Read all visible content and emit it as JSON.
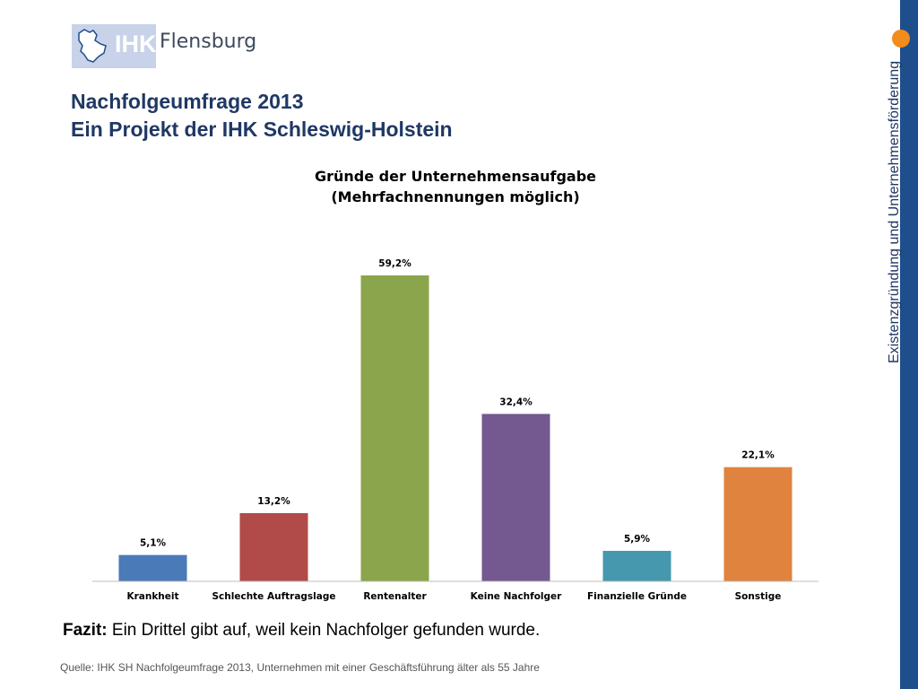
{
  "header": {
    "logo_text": "IHK",
    "logo_city": "Flensburg",
    "title": "Nachfolgeumfrage 2013",
    "subtitle": "Ein Projekt der IHK Schleswig-Holstein"
  },
  "sidebar": {
    "vertical_text": "Existenzgründung und Unternehmensförderung"
  },
  "chart_data": {
    "type": "bar",
    "title": "Gründe der Unternehmensaufgabe",
    "subtitle": "(Mehrfachnennungen möglich)",
    "categories": [
      "Krankheit",
      "Schlechte Auftragslage",
      "Rentenalter",
      "Keine Nachfolger",
      "Finanzielle Gründe",
      "Sonstige"
    ],
    "values": [
      5.1,
      13.2,
      59.2,
      32.4,
      5.9,
      22.1
    ],
    "value_labels": [
      "5,1%",
      "13,2%",
      "59,2%",
      "32,4%",
      "5,9%",
      "22,1%"
    ],
    "colors": [
      "#4a7ab8",
      "#b14b49",
      "#8ba54c",
      "#73598f",
      "#4698ae",
      "#e0833f"
    ],
    "unit": "%",
    "ylim": [
      0,
      65
    ],
    "grid": false
  },
  "conclusion": {
    "label": "Fazit:",
    "text": "Ein Drittel gibt auf, weil kein Nachfolger gefunden wurde."
  },
  "footer": {
    "source": "Quelle: IHK SH Nachfolgeumfrage 2013, Unternehmen mit einer Geschäftsführung älter als 55 Jahre"
  },
  "colors": {
    "brand_blue": "#1f4e8c",
    "accent_orange": "#f28c1b",
    "title_color": "#1f3864"
  }
}
